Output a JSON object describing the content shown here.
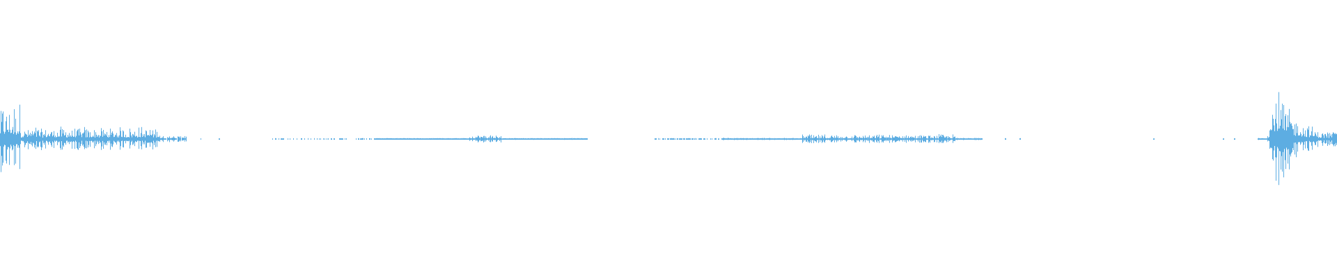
{
  "chart_data": {
    "type": "waveform",
    "color": "#5dade2",
    "background": "#ffffff",
    "amplitude_range": [
      -1,
      1
    ],
    "time_range": [
      0,
      1
    ],
    "grid": false,
    "legend": "none",
    "envelope": [
      {
        "t0": 0.0,
        "t1": 0.016,
        "peak": 0.24,
        "density": 1.0
      },
      {
        "t0": 0.016,
        "t1": 0.12,
        "peak": 0.08,
        "density": 1.0
      },
      {
        "t0": 0.12,
        "t1": 0.14,
        "peak": 0.025,
        "density": 0.9
      },
      {
        "t0": 0.15,
        "t1": 0.151,
        "peak": 0.004,
        "density": 1.0
      },
      {
        "t0": 0.164,
        "t1": 0.165,
        "peak": 0.004,
        "density": 1.0
      },
      {
        "t0": 0.203,
        "t1": 0.28,
        "peak": 0.004,
        "density": 0.4
      },
      {
        "t0": 0.28,
        "t1": 0.44,
        "peak": 0.006,
        "density": 1.0
      },
      {
        "t0": 0.35,
        "t1": 0.375,
        "peak": 0.03,
        "density": 1.0
      },
      {
        "t0": 0.487,
        "t1": 0.54,
        "peak": 0.004,
        "density": 0.5
      },
      {
        "t0": 0.54,
        "t1": 0.735,
        "peak": 0.008,
        "density": 1.0
      },
      {
        "t0": 0.6,
        "t1": 0.715,
        "peak": 0.03,
        "density": 1.0
      },
      {
        "t0": 0.752,
        "t1": 0.753,
        "peak": 0.004,
        "density": 1.0
      },
      {
        "t0": 0.763,
        "t1": 0.764,
        "peak": 0.004,
        "density": 1.0
      },
      {
        "t0": 0.863,
        "t1": 0.864,
        "peak": 0.004,
        "density": 1.0
      },
      {
        "t0": 0.915,
        "t1": 0.916,
        "peak": 0.004,
        "density": 1.0
      },
      {
        "t0": 0.923,
        "t1": 0.924,
        "peak": 0.004,
        "density": 1.0
      },
      {
        "t0": 0.941,
        "t1": 0.948,
        "peak": 0.01,
        "density": 1.0
      },
      {
        "t0": 0.948,
        "t1": 1.0,
        "peak": 0.39,
        "density": 1.0,
        "decay": true
      }
    ]
  }
}
